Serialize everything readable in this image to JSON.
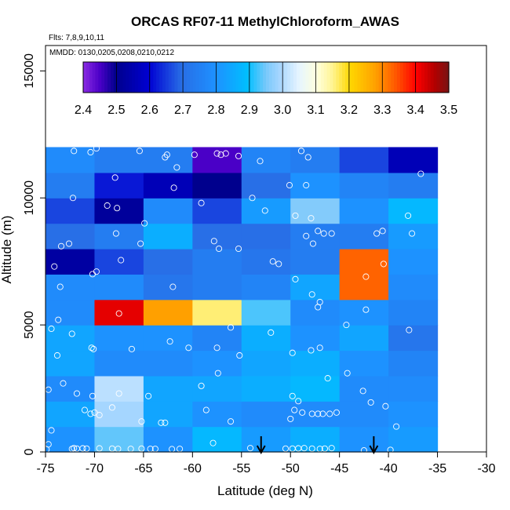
{
  "chart_data": {
    "type": "heatmap",
    "title": "ORCAS RF07-11 MethylChloroform_AWAS",
    "subtitle_flights": "Flts: 7,8,9,10,11",
    "subtitle_dates": "MMDD: 0130,0205,0208,0210,0212",
    "xlabel": "Latitude (deg N)",
    "ylabel": "Altitude (m)",
    "xlim": [
      -75,
      -30
    ],
    "ylim": [
      0,
      16000
    ],
    "x_ticks": [
      -75,
      -70,
      -65,
      -60,
      -55,
      -50,
      -45,
      -40,
      -35,
      -30
    ],
    "x_tick_labels": [
      "-75",
      "-70",
      "-65",
      "-60",
      "-55",
      "-50",
      "-45",
      "-40",
      "-35",
      "-30"
    ],
    "y_ticks": [
      0,
      5000,
      10000,
      15000
    ],
    "y_tick_labels": [
      "0",
      "5000",
      "10000",
      "15000"
    ],
    "colorbar": {
      "min": 2.4,
      "max": 3.5,
      "ticks": [
        2.4,
        2.5,
        2.6,
        2.7,
        2.8,
        2.9,
        3.0,
        3.1,
        3.2,
        3.3,
        3.4,
        3.5
      ],
      "tick_labels": [
        "2.4",
        "2.5",
        "2.6",
        "2.7",
        "2.8",
        "2.9",
        "3.0",
        "3.1",
        "3.2",
        "3.3",
        "3.4",
        "3.5"
      ]
    },
    "grid": {
      "x_edges": [
        -75,
        -70,
        -65,
        -60,
        -55,
        -50,
        -45,
        -40,
        -35
      ],
      "y_edges": [
        0,
        1000,
        2000,
        3000,
        4000,
        5000,
        6000,
        7000,
        8000,
        9000,
        10000,
        11000,
        12000
      ],
      "values": [
        [
          2.8,
          2.94,
          2.8,
          2.88,
          2.82,
          2.86,
          2.8,
          2.82
        ],
        [
          2.84,
          2.99,
          2.84,
          2.8,
          2.78,
          2.78,
          2.78,
          2.8
        ],
        [
          2.78,
          3.01,
          2.84,
          2.84,
          2.86,
          2.88,
          2.78,
          2.78
        ],
        [
          2.84,
          2.78,
          2.78,
          2.8,
          2.84,
          2.86,
          2.8,
          2.76
        ],
        [
          2.84,
          2.8,
          2.8,
          2.76,
          2.86,
          2.8,
          2.84,
          2.72
        ],
        [
          2.78,
          3.42,
          3.28,
          3.16,
          2.93,
          2.78,
          2.8,
          2.76
        ],
        [
          2.78,
          2.78,
          2.72,
          2.74,
          2.76,
          2.84,
          3.33,
          2.78
        ],
        [
          2.53,
          2.66,
          2.7,
          2.74,
          2.72,
          2.74,
          3.33,
          2.8
        ],
        [
          2.7,
          2.74,
          2.86,
          2.7,
          2.7,
          2.74,
          2.74,
          2.82
        ],
        [
          2.66,
          2.52,
          2.78,
          2.66,
          2.82,
          2.96,
          2.8,
          2.88
        ],
        [
          2.74,
          2.62,
          2.56,
          2.5,
          2.7,
          2.8,
          2.76,
          2.74
        ],
        [
          2.78,
          2.74,
          2.74,
          2.45,
          2.76,
          2.74,
          2.66,
          2.56
        ]
      ]
    },
    "samples": [
      [
        -74.9,
        100
      ],
      [
        -74.7,
        300
      ],
      [
        -74.4,
        850
      ],
      [
        -72.3,
        120
      ],
      [
        -72.1,
        150
      ],
      [
        -71.8,
        130
      ],
      [
        -71.2,
        140
      ],
      [
        -70.8,
        130
      ],
      [
        -69.5,
        140
      ],
      [
        -68.2,
        130
      ],
      [
        -67.6,
        120
      ],
      [
        -66.3,
        120
      ],
      [
        -65.2,
        130
      ],
      [
        -64.3,
        120
      ],
      [
        -63.8,
        120
      ],
      [
        -62.1,
        110
      ],
      [
        -61.3,
        120
      ],
      [
        -57.9,
        350
      ],
      [
        -54.1,
        150
      ],
      [
        -50.5,
        130
      ],
      [
        -49.8,
        130
      ],
      [
        -49.2,
        140
      ],
      [
        -48.6,
        150
      ],
      [
        -47.8,
        130
      ],
      [
        -47.0,
        120
      ],
      [
        -46.5,
        130
      ],
      [
        -45.8,
        150
      ],
      [
        -42.5,
        60
      ],
      [
        -39.8,
        80
      ],
      [
        -71.0,
        1650
      ],
      [
        -70.4,
        1500
      ],
      [
        -70.0,
        1550
      ],
      [
        -69.5,
        1450
      ],
      [
        -68.2,
        1750
      ],
      [
        -65.2,
        1200
      ],
      [
        -63.2,
        1150
      ],
      [
        -62.8,
        1150
      ],
      [
        -58.6,
        1650
      ],
      [
        -56.1,
        1200
      ],
      [
        -50.0,
        1300
      ],
      [
        -49.6,
        1650
      ],
      [
        -48.8,
        1550
      ],
      [
        -47.8,
        1500
      ],
      [
        -47.2,
        1500
      ],
      [
        -46.7,
        1500
      ],
      [
        -46.0,
        1500
      ],
      [
        -45.3,
        1550
      ],
      [
        -40.3,
        1800
      ],
      [
        -39.2,
        1000
      ],
      [
        -74.7,
        2450
      ],
      [
        -73.2,
        2700
      ],
      [
        -71.8,
        2300
      ],
      [
        -70.2,
        2200
      ],
      [
        -67.5,
        2300
      ],
      [
        -64.5,
        2200
      ],
      [
        -59.1,
        2600
      ],
      [
        -57.4,
        3100
      ],
      [
        -55.2,
        3800
      ],
      [
        -49.8,
        2200
      ],
      [
        -49.2,
        2000
      ],
      [
        -46.2,
        2900
      ],
      [
        -44.2,
        3100
      ],
      [
        -42.6,
        2400
      ],
      [
        -41.8,
        1950
      ],
      [
        -73.8,
        3800
      ],
      [
        -70.3,
        4100
      ],
      [
        -70.1,
        4050
      ],
      [
        -66.2,
        4050
      ],
      [
        -62.3,
        4350
      ],
      [
        -60.4,
        4100
      ],
      [
        -57.5,
        4100
      ],
      [
        -49.8,
        3900
      ],
      [
        -47.9,
        4000
      ],
      [
        -47.0,
        4100
      ],
      [
        -74.4,
        4850
      ],
      [
        -73.7,
        5200
      ],
      [
        -72.3,
        4650
      ],
      [
        -67.5,
        5450
      ],
      [
        -56.1,
        4900
      ],
      [
        -52.0,
        4700
      ],
      [
        -47.2,
        5700
      ],
      [
        -44.3,
        5000
      ],
      [
        -42.3,
        5600
      ],
      [
        -37.9,
        4800
      ],
      [
        -73.5,
        6500
      ],
      [
        -70.2,
        7000
      ],
      [
        -69.8,
        7100
      ],
      [
        -67.3,
        7550
      ],
      [
        -62.0,
        6500
      ],
      [
        -51.8,
        7500
      ],
      [
        -51.2,
        7400
      ],
      [
        -49.5,
        6800
      ],
      [
        -47.8,
        6200
      ],
      [
        -47.0,
        5900
      ],
      [
        -42.3,
        6900
      ],
      [
        -40.5,
        7400
      ],
      [
        -74.1,
        7300
      ],
      [
        -73.4,
        8100
      ],
      [
        -72.6,
        8200
      ],
      [
        -67.8,
        8600
      ],
      [
        -65.3,
        8200
      ],
      [
        -57.8,
        8300
      ],
      [
        -57.3,
        8000
      ],
      [
        -55.3,
        8000
      ],
      [
        -48.4,
        8500
      ],
      [
        -47.7,
        8200
      ],
      [
        -47.2,
        8700
      ],
      [
        -46.6,
        8600
      ],
      [
        -41.2,
        8600
      ],
      [
        -40.6,
        8700
      ],
      [
        -37.6,
        8600
      ],
      [
        -45.8,
        8600
      ],
      [
        -68.7,
        9700
      ],
      [
        -67.7,
        9600
      ],
      [
        -64.9,
        9000
      ],
      [
        -59.1,
        9800
      ],
      [
        -52.6,
        9500
      ],
      [
        -49.5,
        9300
      ],
      [
        -47.9,
        9200
      ],
      [
        -38.0,
        9300
      ],
      [
        -72.2,
        10000
      ],
      [
        -67.9,
        10800
      ],
      [
        -61.9,
        10400
      ],
      [
        -53.9,
        10000
      ],
      [
        -50.1,
        10500
      ],
      [
        -48.4,
        10500
      ],
      [
        -72.1,
        11850
      ],
      [
        -70.4,
        11800
      ],
      [
        -69.8,
        11950
      ],
      [
        -65.4,
        11850
      ],
      [
        -62.8,
        11600
      ],
      [
        -62.6,
        11700
      ],
      [
        -61.6,
        11200
      ],
      [
        -59.8,
        11700
      ],
      [
        -57.5,
        11750
      ],
      [
        -57.1,
        11700
      ],
      [
        -56.6,
        11750
      ],
      [
        -55.3,
        11650
      ],
      [
        -53.1,
        11450
      ],
      [
        -48.9,
        11850
      ],
      [
        -48.2,
        11600
      ],
      [
        -36.7,
        10950
      ]
    ],
    "arrows_at_latitude": [
      -53,
      -41.5
    ]
  }
}
